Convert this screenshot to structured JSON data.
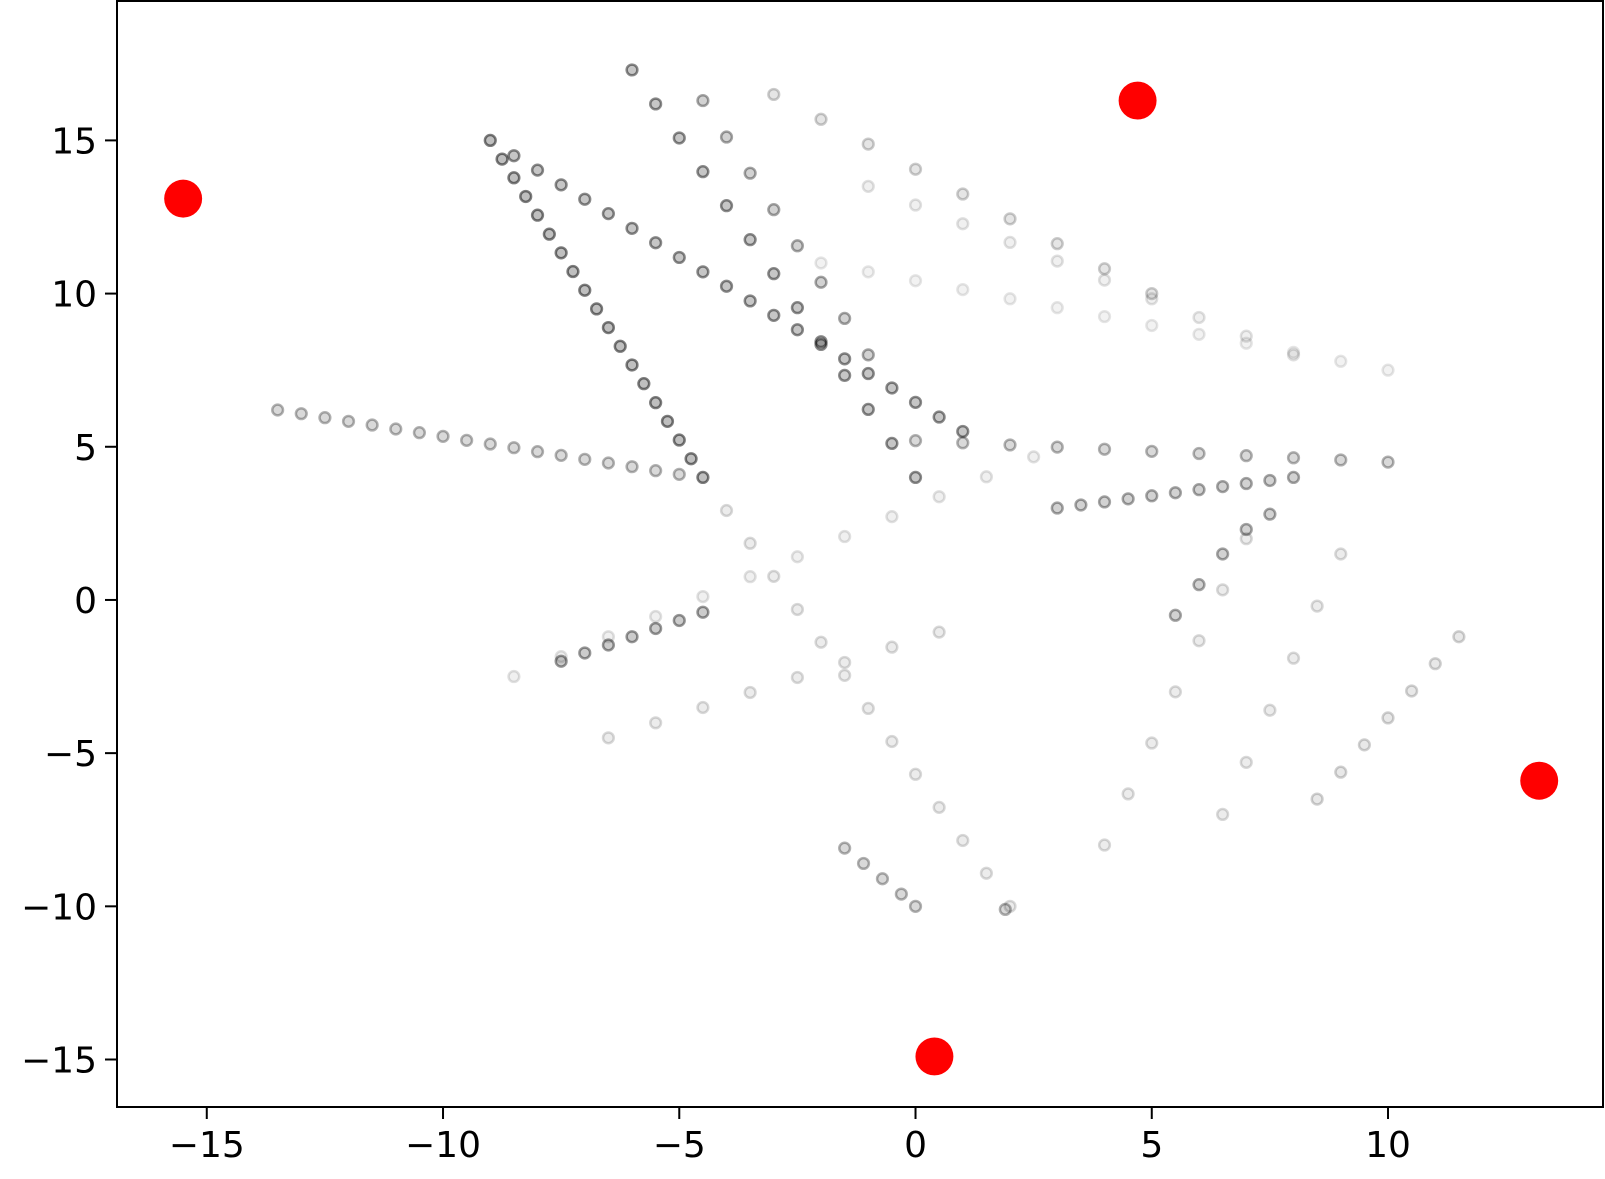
{
  "chart_data": {
    "type": "scatter",
    "xlim": [
      -16.9,
      14.55
    ],
    "ylim": [
      -16.55,
      19.55
    ],
    "xticks": [
      {
        "value": -15,
        "label": "−15"
      },
      {
        "value": -10,
        "label": "−10"
      },
      {
        "value": -5,
        "label": "−5"
      },
      0,
      5,
      10
    ],
    "yticks": [
      {
        "value": -15,
        "label": "−15"
      },
      {
        "value": -10,
        "label": "−10"
      },
      {
        "value": -5,
        "label": "−5"
      },
      0,
      5,
      10,
      15
    ],
    "series": [
      {
        "color": "#000000",
        "opacity": 0.3,
        "size": 20,
        "x": [
          -13.5,
          -13,
          -12.5,
          -12,
          -11.5,
          -11,
          -10.5,
          -10,
          -9.5,
          -9,
          -8.5,
          -8,
          -7.5,
          -7,
          -6.5,
          -6,
          -5.5,
          -5
        ],
        "y": [
          6.2,
          6.08,
          5.95,
          5.83,
          5.71,
          5.58,
          5.46,
          5.34,
          5.21,
          5.09,
          4.97,
          4.84,
          4.72,
          4.59,
          4.47,
          4.35,
          4.22,
          4.1
        ]
      },
      {
        "color": "#000000",
        "opacity": 0.5,
        "size": 20,
        "x": [
          -9,
          -8.75,
          -8.5,
          -8.25,
          -8,
          -7.75,
          -7.5,
          -7.25,
          -7,
          -6.75,
          -6.5,
          -6.25,
          -6,
          -5.75,
          -5.5,
          -5.25,
          -5,
          -4.75,
          -4.5
        ],
        "y": [
          15,
          14.39,
          13.78,
          13.17,
          12.56,
          11.94,
          11.33,
          10.72,
          10.11,
          9.5,
          8.89,
          8.28,
          7.67,
          7.06,
          6.44,
          5.83,
          5.22,
          4.61,
          4.0
        ]
      },
      {
        "color": "#000000",
        "opacity": 0.15,
        "size": 20,
        "x": [
          -4,
          -3.5,
          -3,
          -2.5,
          -2,
          -1.5,
          -1,
          -0.5,
          0,
          0.5,
          1,
          1.5,
          2
        ],
        "y": [
          2.92,
          1.85,
          0.77,
          -0.31,
          -1.38,
          -2.46,
          -3.54,
          -4.62,
          -5.69,
          -6.77,
          -7.85,
          -8.92,
          -10
        ]
      },
      {
        "color": "#000000",
        "opacity": 0.45,
        "size": 20,
        "x": [
          -8.5,
          -8,
          -7.5,
          -7,
          -6.5,
          -6,
          -5.5,
          -5,
          -4.5,
          -4,
          -3.5,
          -3,
          -2.5,
          -2,
          -1.5,
          -1,
          -0.5,
          0,
          0.5,
          1
        ],
        "y": [
          14.5,
          14.03,
          13.55,
          13.08,
          12.61,
          12.13,
          11.66,
          11.18,
          10.71,
          10.24,
          9.76,
          9.29,
          8.82,
          8.34,
          7.87,
          7.39,
          6.92,
          6.45,
          5.97,
          5.5
        ]
      },
      {
        "color": "#000000",
        "opacity": 0.45,
        "size": 20,
        "x": [
          -6,
          -5.5,
          -5,
          -4.5,
          -4,
          -3.5,
          -3,
          -2.5,
          -2,
          -1.5,
          -1,
          -0.5,
          0
        ],
        "y": [
          17.3,
          16.19,
          15.08,
          13.98,
          12.87,
          11.76,
          10.65,
          9.54,
          8.43,
          7.33,
          6.22,
          5.11,
          4.0
        ]
      },
      {
        "color": "#000000",
        "opacity": 0.35,
        "size": 20,
        "x": [
          -4.5,
          -4,
          -3.5,
          -3,
          -2.5,
          -2,
          -1.5,
          -1
        ],
        "y": [
          16.3,
          15.11,
          13.93,
          12.74,
          11.56,
          10.37,
          9.19,
          8.0
        ]
      },
      {
        "color": "#000000",
        "opacity": 0.2,
        "size": 20,
        "x": [
          -3,
          -2,
          -1,
          0,
          1,
          2,
          3,
          4,
          5
        ],
        "y": [
          16.5,
          15.69,
          14.88,
          14.06,
          13.25,
          12.44,
          11.63,
          10.81,
          10.0
        ]
      },
      {
        "color": "#000000",
        "opacity": 0.12,
        "size": 20,
        "x": [
          -1,
          0,
          1,
          2,
          3,
          4,
          5,
          6,
          7,
          8
        ],
        "y": [
          13.5,
          12.89,
          12.28,
          11.67,
          11.06,
          10.44,
          9.83,
          9.22,
          8.61,
          8.0
        ]
      },
      {
        "color": "#000000",
        "opacity": 0.1,
        "size": 20,
        "x": [
          -2,
          -1,
          0,
          1,
          2,
          3,
          4,
          5,
          6,
          7,
          8,
          9,
          10
        ],
        "y": [
          11,
          10.71,
          10.42,
          10.13,
          9.83,
          9.54,
          9.25,
          8.96,
          8.67,
          8.38,
          8.08,
          7.79,
          7.5
        ]
      },
      {
        "color": "#000000",
        "opacity": 0.12,
        "size": 20,
        "x": [
          -8.5,
          -7.5,
          -6.5,
          -5.5,
          -4.5,
          -3.5,
          -2.5,
          -1.5,
          -0.5,
          0.5,
          1.5,
          2.5
        ],
        "y": [
          -2.5,
          -1.85,
          -1.2,
          -0.54,
          0.11,
          0.76,
          1.41,
          2.07,
          2.72,
          3.37,
          4.02,
          4.67
        ]
      },
      {
        "color": "#000000",
        "opacity": 0.4,
        "size": 20,
        "x": [
          -7.5,
          -7,
          -6.5,
          -6,
          -5.5,
          -5,
          -4.5
        ],
        "y": [
          -2,
          -1.73,
          -1.47,
          -1.2,
          -0.93,
          -0.67,
          -0.4
        ]
      },
      {
        "color": "#000000",
        "opacity": 0.15,
        "size": 20,
        "x": [
          -6.5,
          -5.5,
          -4.5,
          -3.5,
          -2.5,
          -1.5,
          -0.5,
          0.5
        ],
        "y": [
          -4.5,
          -4.01,
          -3.51,
          -3.02,
          -2.53,
          -2.04,
          -1.54,
          -1.05
        ]
      },
      {
        "color": "#000000",
        "opacity": 0.3,
        "size": 20,
        "x": [
          0,
          1,
          2,
          3,
          4,
          5,
          6,
          7,
          8,
          9,
          10
        ],
        "y": [
          5.2,
          5.13,
          5.06,
          4.99,
          4.92,
          4.85,
          4.78,
          4.71,
          4.64,
          4.57,
          4.5
        ]
      },
      {
        "color": "#000000",
        "opacity": 0.35,
        "size": 20,
        "x": [
          3,
          3.5,
          4,
          4.5,
          5,
          5.5,
          6,
          6.5,
          7,
          7.5,
          8
        ],
        "y": [
          3.0,
          3.1,
          3.2,
          3.3,
          3.4,
          3.5,
          3.6,
          3.7,
          3.8,
          3.9,
          4.0
        ]
      },
      {
        "color": "#000000",
        "opacity": 0.15,
        "size": 20,
        "x": [
          4,
          4.5,
          5,
          5.5,
          6,
          6.5,
          7
        ],
        "y": [
          -8,
          -6.33,
          -4.67,
          -3,
          -1.33,
          0.33,
          2
        ]
      },
      {
        "color": "#000000",
        "opacity": 0.15,
        "size": 20,
        "x": [
          6.5,
          7,
          7.5,
          8,
          8.5,
          9
        ],
        "y": [
          -7,
          -5.3,
          -3.6,
          -1.9,
          -0.2,
          1.5
        ]
      },
      {
        "color": "#000000",
        "opacity": 0.18,
        "size": 20,
        "x": [
          8.5,
          9,
          9.5,
          10,
          10.5,
          11,
          11.5
        ],
        "y": [
          -6.5,
          -5.62,
          -4.73,
          -3.85,
          -2.97,
          -2.08,
          -1.2
        ]
      },
      {
        "color": "#000000",
        "opacity": 0.35,
        "size": 20,
        "x": [
          5.5,
          6,
          6.5,
          7,
          7.5
        ],
        "y": [
          -0.5,
          0.5,
          1.5,
          2.3,
          2.8
        ]
      },
      {
        "color": "#000000",
        "opacity": 0.3,
        "size": 20,
        "x": [
          -1.5,
          -1.1,
          -0.7,
          -0.3,
          0
        ],
        "y": [
          -8.1,
          -8.6,
          -9.1,
          -9.6,
          -10
        ]
      },
      {
        "color": "#000000",
        "opacity": 0.3,
        "size": 20,
        "x": [
          1.9
        ],
        "y": [
          -10.1
        ]
      },
      {
        "color": "#ff0000",
        "opacity": 1,
        "size": 250,
        "x": [
          -15.5,
          4.7,
          0.4,
          13.2
        ],
        "y": [
          13.1,
          16.3,
          -14.9,
          -5.9
        ]
      }
    ]
  }
}
